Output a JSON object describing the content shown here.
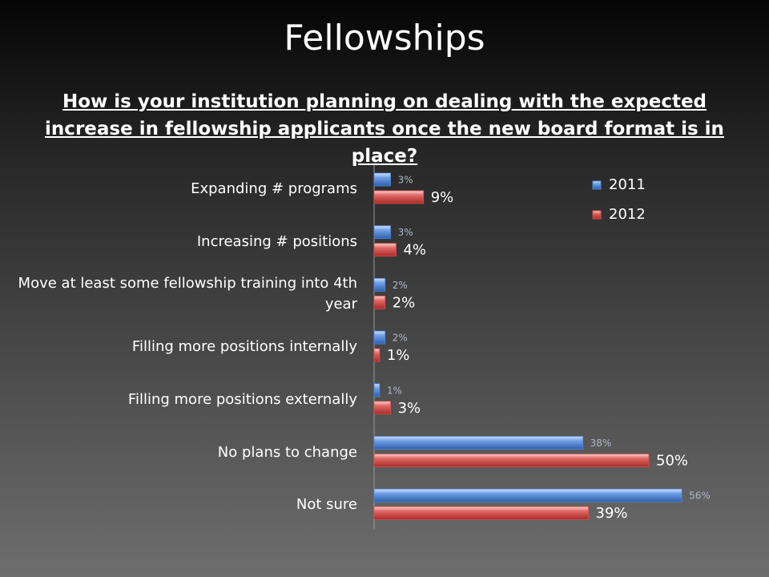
{
  "chart_data": {
    "type": "hbar",
    "title": "Fellowships",
    "subtitle": "How is your institution planning on dealing with the expected increase in fellowship applicants once the new board format is in place?",
    "categories": [
      "Expanding # programs",
      "Increasing # positions",
      "Move at least some fellowship training into 4th year",
      "Filling more positions internally",
      "Filling more positions externally",
      "No plans to change",
      "Not sure"
    ],
    "series": [
      {
        "name": "2011",
        "color": "#4f86d6",
        "values": [
          3,
          3,
          2,
          2,
          1,
          38,
          56
        ],
        "value_labels": [
          "3%",
          "3%",
          "2%",
          "2%",
          "1%",
          "38%",
          "56%"
        ]
      },
      {
        "name": "2012",
        "color": "#d9504c",
        "values": [
          9,
          4,
          2,
          1,
          3,
          50,
          39
        ],
        "value_labels": [
          "9%",
          "4%",
          "2%",
          "1%",
          "3%",
          "50%",
          "39%"
        ]
      }
    ],
    "legend": "top-right"
  }
}
